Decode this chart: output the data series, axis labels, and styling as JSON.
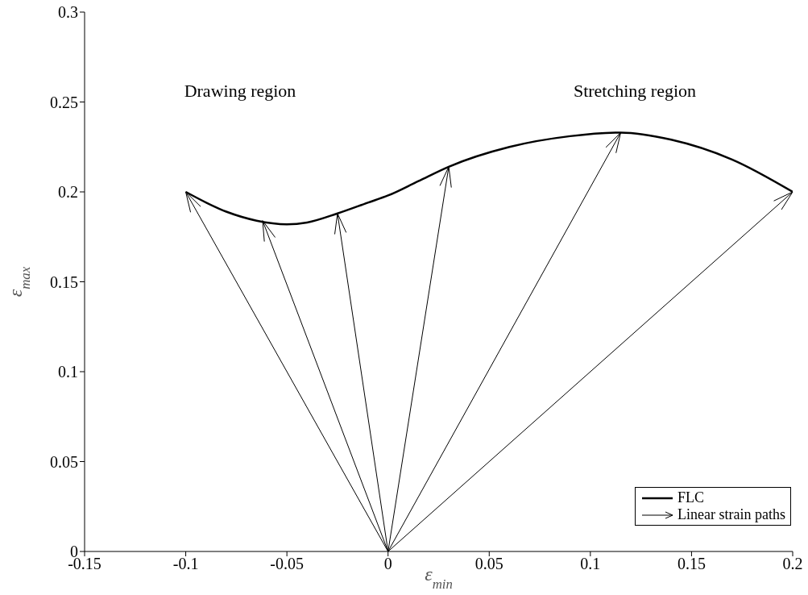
{
  "chart_data": {
    "type": "line",
    "xlabel": "ε$_{min}$",
    "ylabel": "ε$_{max}$",
    "xlim": [
      -0.15,
      0.2
    ],
    "xticks": [
      -0.15,
      -0.1,
      -0.05,
      0,
      0.05,
      0.1,
      0.15,
      0.2
    ],
    "ylim": [
      0,
      0.3
    ],
    "yticks": [
      0,
      0.05,
      0.1,
      0.15,
      0.2,
      0.25,
      0.3
    ],
    "grid": false,
    "legend": "bottom right",
    "annotations": [
      "Drawing region",
      "Stretching region"
    ],
    "series": [
      {
        "name": "FLC",
        "color": "#000000",
        "x": [
          -0.1,
          -0.08,
          -0.065,
          -0.05,
          -0.04,
          -0.025,
          -0.01,
          0,
          0.015,
          0.03,
          0.06,
          0.09,
          0.115,
          0.14,
          0.17,
          0.2
        ],
        "values": [
          0.2,
          0.189,
          0.184,
          0.182,
          0.183,
          0.188,
          0.194,
          0.198,
          0.206,
          0.214,
          0.225,
          0.231,
          0.233,
          0.229,
          0.218,
          0.2
        ]
      },
      {
        "name": "Linear strain paths",
        "color": "#000000",
        "x": [
          0,
          -0.1
        ],
        "values": [
          0,
          0.2
        ]
      },
      {
        "color": "#000000",
        "x": [
          0,
          -0.062
        ],
        "values": [
          0,
          0.184
        ]
      },
      {
        "color": "#000000",
        "x": [
          0,
          -0.025
        ],
        "values": [
          0,
          0.188
        ]
      },
      {
        "color": "#000000",
        "x": [
          0,
          0.03
        ],
        "values": [
          0,
          0.214
        ]
      },
      {
        "color": "#000000",
        "x": [
          0,
          0.115
        ],
        "values": [
          0,
          0.233
        ]
      },
      {
        "color": "#000000",
        "x": [
          0,
          0.2
        ],
        "values": [
          0,
          0.2
        ]
      }
    ]
  }
}
